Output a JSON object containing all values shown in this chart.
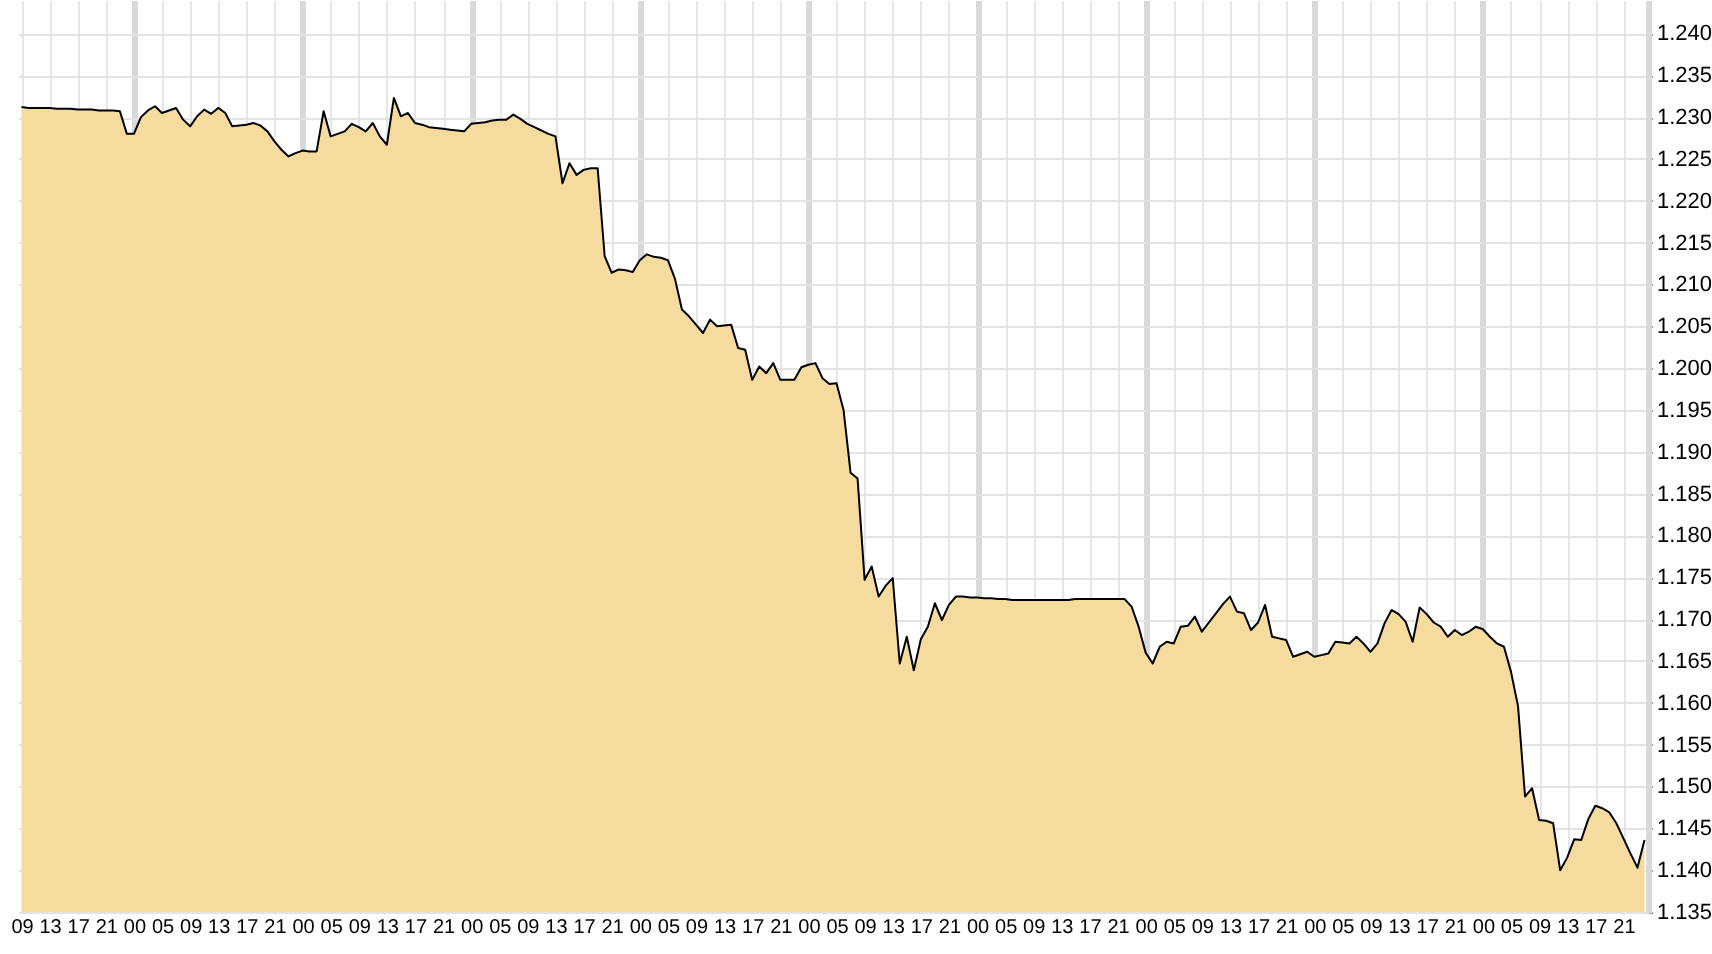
{
  "chart_data": {
    "type": "area",
    "color": "#f5dc9e",
    "categories": [
      "09",
      null,
      null,
      null,
      "13",
      null,
      null,
      null,
      "17",
      null,
      null,
      null,
      "21",
      null,
      null,
      null,
      "00",
      null,
      null,
      null,
      "05",
      null,
      null,
      null,
      "09",
      null,
      null,
      null,
      "13",
      null,
      null,
      null,
      "17",
      null,
      null,
      null,
      "21",
      null,
      null,
      null,
      "00",
      null,
      null,
      null,
      "05",
      null,
      null,
      null,
      "09",
      null,
      null,
      null,
      "13",
      null,
      null,
      null,
      "17",
      null,
      null,
      null,
      "21",
      null,
      null,
      null,
      "00",
      null,
      null,
      null,
      "05",
      null,
      null,
      null,
      "09",
      null,
      null,
      null,
      "13",
      null,
      null,
      null,
      "17",
      null,
      null,
      null,
      "21",
      null,
      null,
      null,
      "00",
      null,
      null,
      null,
      "05",
      null,
      null,
      null,
      "09",
      null,
      null,
      null,
      "13",
      null,
      null,
      null,
      "17",
      null,
      null,
      null,
      "21",
      null,
      null,
      null,
      "00",
      null,
      null,
      null,
      "05",
      null,
      null,
      null,
      "09",
      null,
      null,
      null,
      "13",
      null,
      null,
      null,
      "17",
      null,
      null,
      null,
      "21",
      null,
      null,
      null,
      "00",
      null,
      null,
      null,
      "05",
      null,
      null,
      null,
      "09",
      null,
      null,
      null,
      "13",
      null,
      null,
      null,
      "17",
      null,
      null,
      null,
      "21",
      null,
      null,
      null,
      "00",
      null,
      null,
      null,
      "05",
      null,
      null,
      null,
      "09",
      null,
      null,
      null,
      "13",
      null,
      null,
      null,
      "17",
      null,
      null,
      null,
      "21",
      null,
      null,
      null,
      "00",
      null,
      null,
      null,
      "05",
      null,
      null,
      null,
      "09",
      null,
      null,
      null,
      "13",
      null,
      null,
      null,
      "17",
      null,
      null,
      null,
      "21",
      null,
      null,
      null,
      "00",
      null,
      null,
      null,
      "05",
      null,
      null,
      null,
      "09",
      null,
      null,
      null,
      "13",
      null,
      null,
      null,
      "17",
      null,
      null,
      null,
      "21",
      null,
      null,
      null
    ],
    "values": [
      1.2312,
      1.2311,
      1.2311,
      1.2311,
      1.2311,
      1.231,
      1.231,
      1.231,
      1.2309,
      1.2309,
      1.2309,
      1.2308,
      1.2308,
      1.2308,
      1.2307,
      1.228,
      1.228,
      1.23,
      1.2308,
      1.2313,
      1.2305,
      1.2308,
      1.2311,
      1.2297,
      1.2289,
      1.2301,
      1.2309,
      1.2304,
      1.2311,
      1.2305,
      1.2289,
      1.229,
      1.2291,
      1.2293,
      1.229,
      1.2283,
      1.2271,
      1.2261,
      1.2253,
      1.2257,
      1.226,
      1.2259,
      1.2259,
      1.2307,
      1.2277,
      1.228,
      1.2283,
      1.2292,
      1.2288,
      1.2283,
      1.2293,
      1.2277,
      1.2267,
      1.2323,
      1.2301,
      1.2305,
      1.2293,
      1.2291,
      1.2288,
      1.2287,
      1.2286,
      1.2285,
      1.2284,
      1.2283,
      1.2292,
      1.2293,
      1.2294,
      1.2296,
      1.2297,
      1.2297,
      1.2303,
      1.2298,
      1.2292,
      1.2288,
      1.2284,
      1.228,
      1.2277,
      1.2221,
      1.2245,
      1.2231,
      1.2237,
      1.2239,
      1.2239,
      1.2134,
      1.2114,
      1.2118,
      1.2117,
      1.2115,
      1.2129,
      1.2136,
      1.2133,
      1.2132,
      1.2129,
      1.2107,
      1.207,
      1.2062,
      1.2052,
      1.2042,
      1.2058,
      1.205,
      1.2051,
      1.2052,
      1.2024,
      1.2022,
      1.1986,
      1.2002,
      1.1994,
      1.2006,
      1.1986,
      1.1986,
      1.1986,
      1.2001,
      1.2004,
      1.2006,
      1.1988,
      1.1981,
      1.1982,
      1.195,
      1.1875,
      1.1868,
      1.1747,
      1.1763,
      1.1727,
      1.174,
      1.1749,
      1.1647,
      1.1679,
      1.1639,
      1.1676,
      1.1691,
      1.1719,
      1.1699,
      1.1717,
      1.1727,
      1.1727,
      1.1726,
      1.1726,
      1.1725,
      1.1725,
      1.1724,
      1.1724,
      1.1723,
      1.1723,
      1.1723,
      1.1723,
      1.1723,
      1.1723,
      1.1723,
      1.1723,
      1.1723,
      1.1724,
      1.1724,
      1.1724,
      1.1724,
      1.1724,
      1.1724,
      1.1724,
      1.1724,
      1.1715,
      1.1691,
      1.166,
      1.1647,
      1.1667,
      1.1673,
      1.1671,
      1.1691,
      1.1692,
      1.1703,
      1.1685,
      1.1696,
      1.1707,
      1.1718,
      1.1727,
      1.1709,
      1.1707,
      1.1687,
      1.1696,
      1.1717,
      1.1679,
      1.1677,
      1.1675,
      1.1655,
      1.1658,
      1.1661,
      1.1655,
      1.1657,
      1.1659,
      1.1673,
      1.1672,
      1.1671,
      1.1679,
      1.1671,
      1.1661,
      1.1671,
      1.1695,
      1.1711,
      1.1706,
      1.1697,
      1.1673,
      1.1714,
      1.1706,
      1.1696,
      1.1691,
      1.1679,
      1.1687,
      1.1681,
      1.1685,
      1.1691,
      1.1688,
      1.1679,
      1.1671,
      1.1667,
      1.1637,
      1.1596,
      1.1488,
      1.1498,
      1.146,
      1.1459,
      1.1456,
      1.14,
      1.1415,
      1.1437,
      1.1436,
      1.1461,
      1.1477,
      1.1474,
      1.1469,
      1.1456,
      1.1438,
      1.142,
      1.1403,
      1.1436
    ],
    "ylim": [
      1.135,
      1.244
    ],
    "yticks": [
      1.135,
      {
        "value": 1.14,
        "label": "1.140"
      },
      1.145,
      {
        "value": 1.15,
        "label": "1.150"
      },
      1.155,
      {
        "value": 1.16,
        "label": "1.160"
      },
      1.165,
      {
        "value": 1.17,
        "label": "1.170"
      },
      1.175,
      {
        "value": 1.18,
        "label": "1.180"
      },
      1.185,
      {
        "value": 1.19,
        "label": "1.190"
      },
      1.195,
      {
        "value": 1.2,
        "label": "1.200"
      },
      1.205,
      {
        "value": 1.21,
        "label": "1.210"
      },
      1.215,
      {
        "value": 1.22,
        "label": "1.220"
      },
      1.225,
      {
        "value": 1.23,
        "label": "1.230"
      },
      1.235,
      {
        "value": 1.24,
        "label": "1.240"
      }
    ],
    "grid": true
  }
}
